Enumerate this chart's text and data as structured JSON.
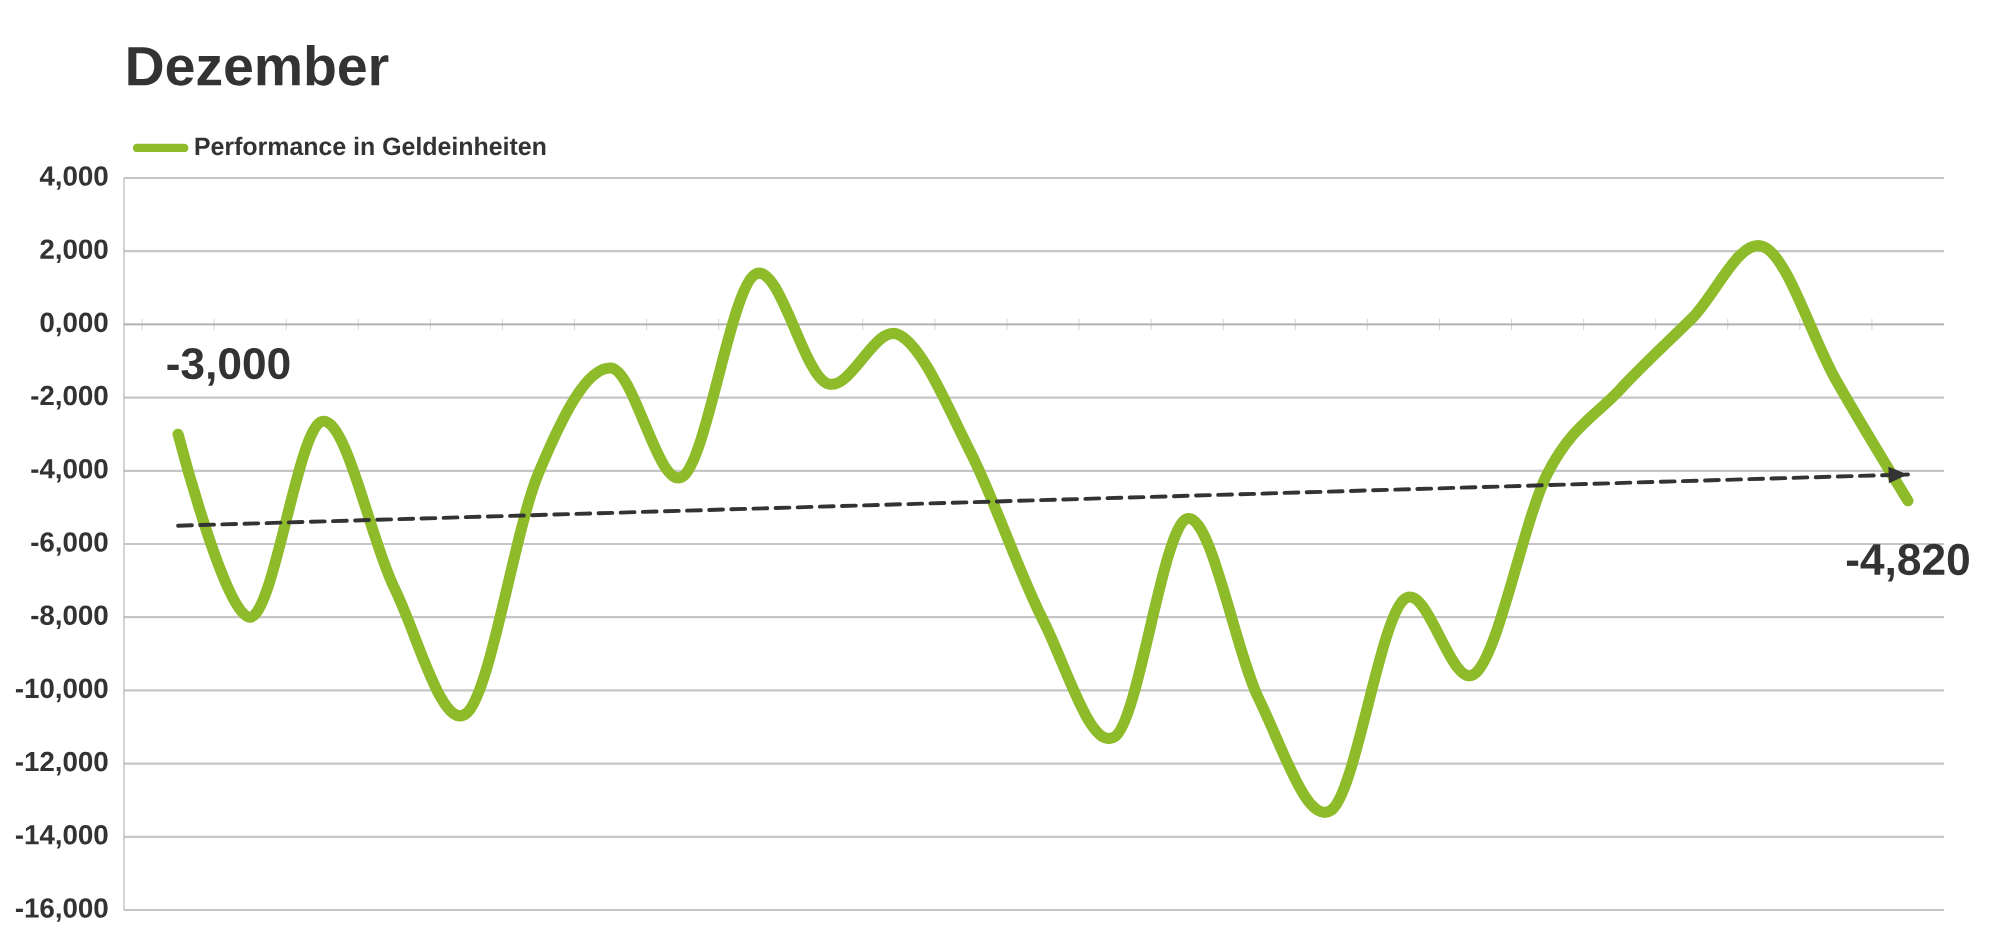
{
  "chart_data": {
    "type": "line",
    "title": "Dezember",
    "categories": [
      null,
      null,
      null,
      null,
      null,
      null,
      null,
      null,
      null,
      null,
      null,
      null,
      null,
      null,
      null,
      null,
      null,
      null,
      null,
      null,
      null,
      null,
      null,
      null,
      null
    ],
    "series": [
      {
        "name": "Performance in Geldeinheiten",
        "color": "#8dbb2a",
        "values": [
          -3000,
          -8000,
          -2650,
          -7200,
          -10630,
          -4070,
          -1190,
          -4160,
          1360,
          -1610,
          -280,
          -3520,
          -8080,
          -11260,
          -5310,
          -10260,
          -13270,
          -7530,
          -9530,
          -4070,
          -1790,
          160,
          2120,
          -1520,
          -4820
        ],
        "value_labels": [
          "-3,000",
          null,
          null,
          null,
          null,
          null,
          null,
          null,
          null,
          null,
          null,
          null,
          null,
          null,
          null,
          null,
          null,
          null,
          null,
          null,
          null,
          null,
          null,
          null,
          "-4,820"
        ]
      },
      {
        "color": "#333333",
        "line_style": "dashed",
        "values": [
          -5500,
          null,
          null,
          null,
          null,
          null,
          null,
          null,
          null,
          null,
          null,
          null,
          null,
          null,
          null,
          null,
          null,
          null,
          null,
          null,
          null,
          null,
          null,
          null,
          -4100
        ]
      }
    ],
    "ylim": [
      -16000,
      4000
    ],
    "yticks": [
      {
        "value": 4000,
        "label": "4,000"
      },
      {
        "value": 2000,
        "label": "2,000"
      },
      {
        "value": 0,
        "label": "0,000"
      },
      {
        "value": -2000,
        "label": "-2,000"
      },
      {
        "value": -4000,
        "label": "-4,000"
      },
      {
        "value": -6000,
        "label": "-6,000"
      },
      {
        "value": -8000,
        "label": "-8,000"
      },
      {
        "value": -10000,
        "label": "-10,000"
      },
      {
        "value": -12000,
        "label": "-12,000"
      },
      {
        "value": -14000,
        "label": "-14,000"
      },
      {
        "value": -16000,
        "label": "-16,000"
      }
    ],
    "grid": "y",
    "legend": "top left",
    "line_style": "solid",
    "marker": "none"
  }
}
